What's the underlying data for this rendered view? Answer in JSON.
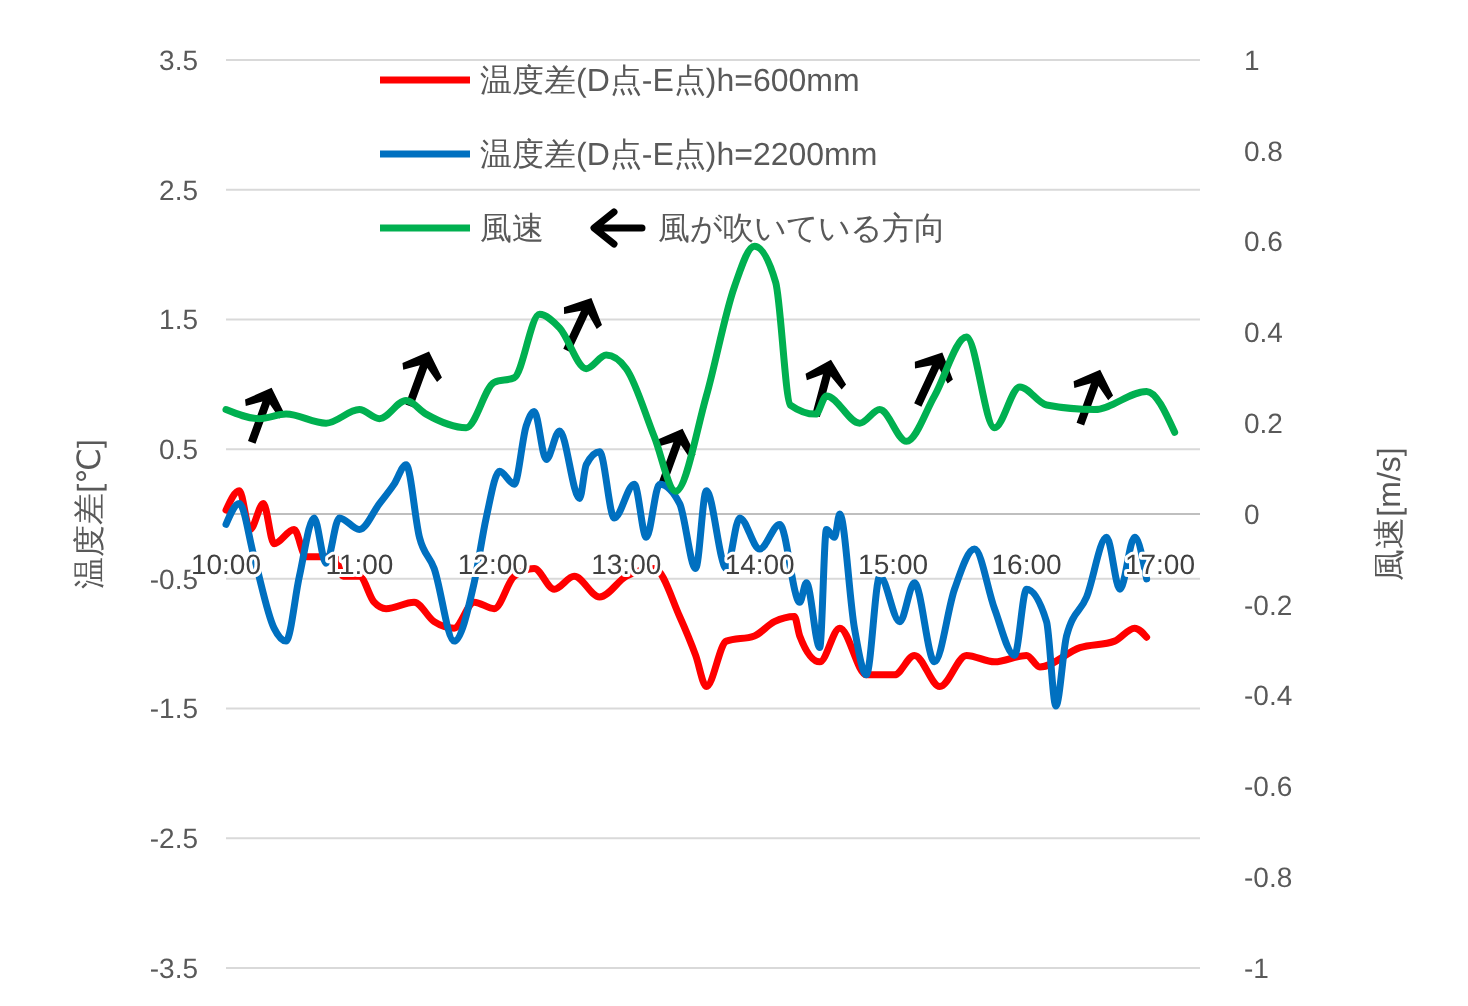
{
  "chart_data": {
    "type": "line",
    "ylabel": "温度差[℃]",
    "y2label": "風速[m/s]",
    "legend": "top",
    "grid": "y",
    "line_style": "solid",
    "marker": "none",
    "annotations": [
      "風が吹いている方向"
    ],
    "xlim": [
      10,
      17.3
    ],
    "xticks": [
      {
        "value": 10,
        "label": "10:00"
      },
      {
        "value": 11,
        "label": "11:00"
      },
      {
        "value": 12,
        "label": "12:00"
      },
      {
        "value": 13,
        "label": "13:00"
      },
      {
        "value": 14,
        "label": "14:00"
      },
      {
        "value": 15,
        "label": "15:00"
      },
      {
        "value": 16,
        "label": "16:00"
      },
      {
        "value": 17,
        "label": "17:00"
      }
    ],
    "ylim": [
      -3.5,
      3.5
    ],
    "yticks": [
      3.5,
      2.5,
      1.5,
      0.5,
      -0.5,
      -1.5,
      -2.5,
      -3.5
    ],
    "y2lim": [
      -1,
      1
    ],
    "y2ticks": [
      1,
      0.8,
      0.6,
      0.4,
      0.2,
      0,
      -0.2,
      -0.4,
      -0.6,
      -0.8,
      -1
    ],
    "series": [
      {
        "name": "温度差(D点-E点)h=600mm",
        "color": "#ff0000",
        "x": [
          10.0,
          10.1,
          10.18,
          10.28,
          10.36,
          10.51,
          10.6,
          10.81,
          10.88,
          11.0,
          11.11,
          11.2,
          11.41,
          11.56,
          11.71,
          11.86,
          12.01,
          12.16,
          12.31,
          12.46,
          12.61,
          12.8,
          13.0,
          13.21,
          13.4,
          13.52,
          13.6,
          13.75,
          13.96,
          14.11,
          14.26,
          14.3,
          14.45,
          14.6,
          14.8,
          15.01,
          15.16,
          15.35,
          15.55,
          15.76,
          16.0,
          16.1,
          16.4,
          16.66,
          16.81,
          16.9
        ],
        "values": [
          0.03,
          0.18,
          -0.12,
          0.08,
          -0.23,
          -0.12,
          -0.33,
          -0.33,
          -0.48,
          -0.48,
          -0.68,
          -0.73,
          -0.68,
          -0.83,
          -0.88,
          -0.68,
          -0.73,
          -0.48,
          -0.42,
          -0.58,
          -0.48,
          -0.64,
          -0.48,
          -0.42,
          -0.79,
          -1.09,
          -1.33,
          -0.98,
          -0.94,
          -0.83,
          -0.79,
          -0.94,
          -1.14,
          -0.88,
          -1.24,
          -1.24,
          -1.09,
          -1.33,
          -1.09,
          -1.14,
          -1.09,
          -1.18,
          -1.03,
          -0.98,
          -0.88,
          -0.95
        ]
      },
      {
        "name": "温度差(D点-E点)h=2200mm",
        "color": "#0070c0",
        "x": [
          10.0,
          10.1,
          10.21,
          10.36,
          10.45,
          10.55,
          10.66,
          10.75,
          10.85,
          11.0,
          11.15,
          11.26,
          11.35,
          11.45,
          11.56,
          11.71,
          11.86,
          11.95,
          12.05,
          12.16,
          12.25,
          12.31,
          12.4,
          12.5,
          12.65,
          12.7,
          12.8,
          12.91,
          13.06,
          13.15,
          13.25,
          13.4,
          13.52,
          13.6,
          13.75,
          13.85,
          14.0,
          14.15,
          14.3,
          14.35,
          14.45,
          14.5,
          14.56,
          14.6,
          14.71,
          14.8,
          14.9,
          15.05,
          15.16,
          15.31,
          15.46,
          15.61,
          15.76,
          15.91,
          16.0,
          16.15,
          16.22,
          16.3,
          16.45,
          16.6,
          16.7,
          16.81,
          16.9
        ],
        "values": [
          -0.08,
          0.08,
          -0.33,
          -0.88,
          -0.98,
          -0.48,
          -0.03,
          -0.38,
          -0.03,
          -0.12,
          0.08,
          0.23,
          0.38,
          -0.18,
          -0.42,
          -0.98,
          -0.53,
          -0.03,
          0.33,
          0.23,
          0.68,
          0.79,
          0.42,
          0.64,
          0.12,
          0.38,
          0.48,
          -0.03,
          0.23,
          -0.18,
          0.23,
          0.08,
          -0.42,
          0.18,
          -0.42,
          -0.03,
          -0.27,
          -0.08,
          -0.68,
          -0.53,
          -1.03,
          -0.12,
          -0.18,
          0.0,
          -0.88,
          -1.24,
          -0.48,
          -0.83,
          -0.53,
          -1.14,
          -0.58,
          -0.27,
          -0.73,
          -1.09,
          -0.58,
          -0.83,
          -1.48,
          -0.94,
          -0.64,
          -0.18,
          -0.58,
          -0.18,
          -0.5
        ]
      },
      {
        "name": "風速",
        "color": "#00b050",
        "axis": "y2",
        "x": [
          10.0,
          10.25,
          10.45,
          10.75,
          11.0,
          11.15,
          11.35,
          11.5,
          11.8,
          12.01,
          12.16,
          12.35,
          12.5,
          12.7,
          12.85,
          13.0,
          13.21,
          13.37,
          13.6,
          13.81,
          13.96,
          14.12,
          14.23,
          14.42,
          14.5,
          14.75,
          14.9,
          15.1,
          15.31,
          15.55,
          15.76,
          15.95,
          16.15,
          16.51,
          16.9,
          17.11
        ],
        "values": [
          0.23,
          0.21,
          0.22,
          0.2,
          0.23,
          0.21,
          0.25,
          0.22,
          0.19,
          0.29,
          0.3,
          0.44,
          0.41,
          0.32,
          0.35,
          0.32,
          0.17,
          0.05,
          0.26,
          0.5,
          0.59,
          0.51,
          0.24,
          0.22,
          0.26,
          0.2,
          0.23,
          0.16,
          0.26,
          0.39,
          0.19,
          0.28,
          0.24,
          0.23,
          0.27,
          0.18
        ]
      }
    ]
  }
}
